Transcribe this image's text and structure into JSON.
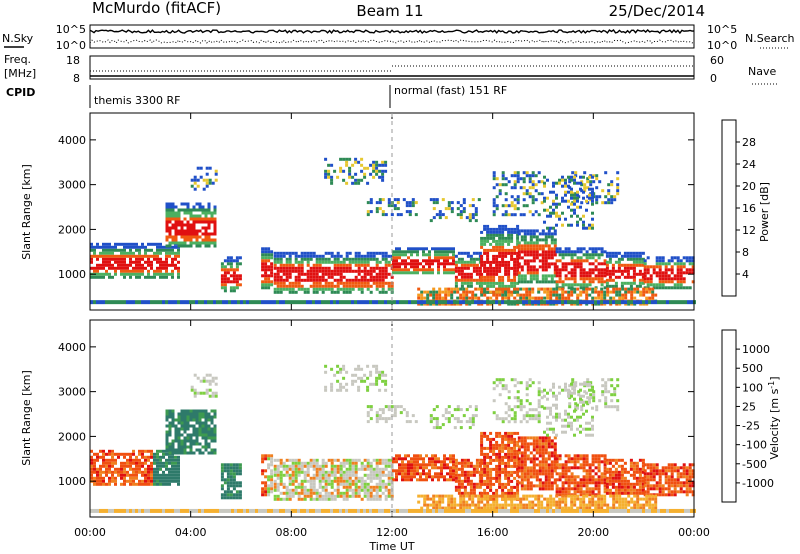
{
  "header": {
    "station": "McMurdo (fitACF)",
    "beam": "Beam 11",
    "date": "25/Dec/2014"
  },
  "noise_panel": {
    "left_label": "N.Sky",
    "right_label": "N.Search",
    "left_ticks": [
      "10^5",
      "10^0"
    ],
    "right_ticks": [
      "10^5",
      "10^0"
    ]
  },
  "freq_panel": {
    "left_label_1": "Freq.",
    "left_label_2": "[MHz]",
    "left_ticks": [
      "18",
      "8"
    ],
    "right_label": "Nave",
    "right_ticks": [
      "60",
      "0"
    ]
  },
  "cpid": {
    "label": "CPID",
    "segments": [
      {
        "name": "themis 3300 RF",
        "start_hour": 0
      },
      {
        "name": "normal (fast) 151 RF",
        "start_hour": 12
      }
    ]
  },
  "time_axis": {
    "label": "Time UT",
    "ticks": [
      "00:00",
      "04:00",
      "08:00",
      "12:00",
      "16:00",
      "20:00",
      "00:00"
    ]
  },
  "power_colorbar": {
    "label": "Power [dB]",
    "ticks": [
      "28",
      "24",
      "20",
      "16",
      "12",
      "8",
      "4"
    ],
    "colors": [
      "#0a20ff",
      "#2050c8",
      "#2e8a55",
      "#4cb060",
      "#e6c830",
      "#f59a20",
      "#f05a10",
      "#e01010"
    ]
  },
  "velocity_colorbar": {
    "label": "Velocity [m s^-1]",
    "ticks": [
      "1000",
      "500",
      "100",
      "25",
      "-25",
      "-100",
      "-500",
      "-1000"
    ],
    "colors": [
      "#2040d0",
      "#2e7a6a",
      "#3d9a50",
      "#7ed040",
      "#c8c8c0",
      "#f5b030",
      "#f08020",
      "#f05010",
      "#e01010"
    ]
  },
  "chart_data": [
    {
      "type": "heatmap",
      "title": "",
      "xlabel": "Time UT",
      "ylabel": "Slant Range [km]",
      "xlim": [
        0,
        24
      ],
      "ylim": [
        200,
        4600
      ],
      "yticks": [
        1000,
        2000,
        3000,
        4000
      ],
      "ytick_labels": [
        "1000",
        "2000",
        "3000",
        "4000"
      ],
      "colorbar": "Power [dB]",
      "clim": [
        0,
        32
      ]
    },
    {
      "type": "heatmap",
      "title": "",
      "xlabel": "Time UT",
      "ylabel": "Slant Range [km]",
      "xlim": [
        0,
        24
      ],
      "ylim": [
        200,
        4600
      ],
      "yticks": [
        1000,
        2000,
        3000,
        4000
      ],
      "ytick_labels": [
        "1000",
        "2000",
        "3000",
        "4000"
      ],
      "colorbar": "Velocity [m s^-1]",
      "clim": [
        -1000,
        1000
      ]
    }
  ]
}
